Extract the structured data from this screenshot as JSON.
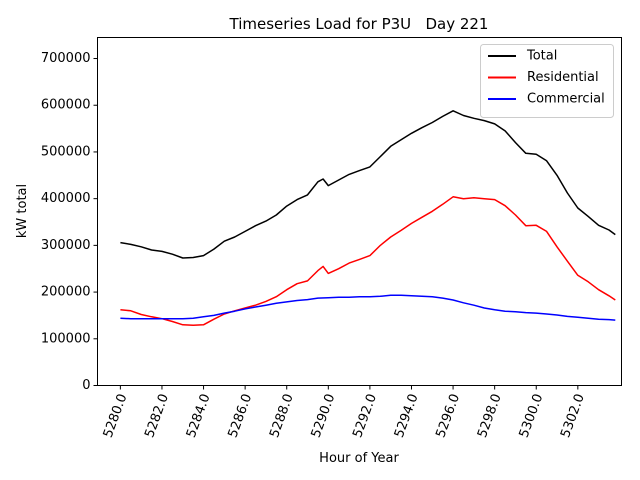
{
  "chart_data": {
    "type": "line",
    "title": "Timeseries Load for P3U   Day 221",
    "xlabel": "Hour of Year",
    "ylabel": "kW total",
    "xlim": [
      5278.9,
      5304.1
    ],
    "ylim": [
      0,
      745000
    ],
    "xticks": [
      5280,
      5282,
      5284,
      5286,
      5288,
      5290,
      5292,
      5294,
      5296,
      5298,
      5300,
      5302
    ],
    "xtick_labels": [
      "5280.0",
      "5282.0",
      "5284.0",
      "5286.0",
      "5288.0",
      "5290.0",
      "5292.0",
      "5294.0",
      "5296.0",
      "5298.0",
      "5300.0",
      "5302.0"
    ],
    "yticks": [
      0,
      100000,
      200000,
      300000,
      400000,
      500000,
      600000,
      700000
    ],
    "ytick_labels": [
      "0",
      "100000",
      "200000",
      "300000",
      "400000",
      "500000",
      "600000",
      "700000"
    ],
    "legend_position": "top-right",
    "series": [
      {
        "name": "Total",
        "color": "#000000",
        "points": [
          [
            5280.0,
            306000
          ],
          [
            5280.5,
            302000
          ],
          [
            5281.0,
            297000
          ],
          [
            5281.5,
            290000
          ],
          [
            5282.0,
            287000
          ],
          [
            5282.5,
            281000
          ],
          [
            5283.0,
            273000
          ],
          [
            5283.5,
            274000
          ],
          [
            5284.0,
            278000
          ],
          [
            5284.5,
            292000
          ],
          [
            5285.0,
            309000
          ],
          [
            5285.5,
            318000
          ],
          [
            5286.0,
            330000
          ],
          [
            5286.5,
            342000
          ],
          [
            5287.0,
            352000
          ],
          [
            5287.5,
            365000
          ],
          [
            5288.0,
            384000
          ],
          [
            5288.5,
            398000
          ],
          [
            5289.0,
            408000
          ],
          [
            5289.5,
            436000
          ],
          [
            5289.75,
            442000
          ],
          [
            5290.0,
            428000
          ],
          [
            5290.5,
            440000
          ],
          [
            5291.0,
            452000
          ],
          [
            5291.5,
            460000
          ],
          [
            5292.0,
            468000
          ],
          [
            5292.5,
            490000
          ],
          [
            5293.0,
            512000
          ],
          [
            5293.5,
            526000
          ],
          [
            5294.0,
            540000
          ],
          [
            5294.5,
            552000
          ],
          [
            5295.0,
            563000
          ],
          [
            5295.5,
            576000
          ],
          [
            5296.0,
            588000
          ],
          [
            5296.5,
            578000
          ],
          [
            5297.0,
            572000
          ],
          [
            5297.5,
            567000
          ],
          [
            5298.0,
            560000
          ],
          [
            5298.5,
            545000
          ],
          [
            5299.0,
            520000
          ],
          [
            5299.5,
            497000
          ],
          [
            5300.0,
            495000
          ],
          [
            5300.5,
            481000
          ],
          [
            5301.0,
            450000
          ],
          [
            5301.5,
            412000
          ],
          [
            5302.0,
            380000
          ],
          [
            5302.5,
            362000
          ],
          [
            5303.0,
            343000
          ],
          [
            5303.5,
            333000
          ],
          [
            5303.8,
            323000
          ]
        ]
      },
      {
        "name": "Residential",
        "color": "#ff0000",
        "points": [
          [
            5280.0,
            162000
          ],
          [
            5280.5,
            160000
          ],
          [
            5281.0,
            152000
          ],
          [
            5281.5,
            147000
          ],
          [
            5282.0,
            143000
          ],
          [
            5282.5,
            137000
          ],
          [
            5283.0,
            130000
          ],
          [
            5283.5,
            129000
          ],
          [
            5284.0,
            130000
          ],
          [
            5284.5,
            142000
          ],
          [
            5285.0,
            153000
          ],
          [
            5285.5,
            160000
          ],
          [
            5286.0,
            166000
          ],
          [
            5286.5,
            172000
          ],
          [
            5287.0,
            180000
          ],
          [
            5287.5,
            190000
          ],
          [
            5288.0,
            205000
          ],
          [
            5288.5,
            218000
          ],
          [
            5289.0,
            224000
          ],
          [
            5289.5,
            246000
          ],
          [
            5289.75,
            255000
          ],
          [
            5290.0,
            240000
          ],
          [
            5290.5,
            250000
          ],
          [
            5291.0,
            262000
          ],
          [
            5291.5,
            270000
          ],
          [
            5292.0,
            278000
          ],
          [
            5292.5,
            300000
          ],
          [
            5293.0,
            318000
          ],
          [
            5293.5,
            332000
          ],
          [
            5294.0,
            347000
          ],
          [
            5294.5,
            360000
          ],
          [
            5295.0,
            373000
          ],
          [
            5295.5,
            388000
          ],
          [
            5296.0,
            404000
          ],
          [
            5296.5,
            400000
          ],
          [
            5297.0,
            402000
          ],
          [
            5297.5,
            400000
          ],
          [
            5298.0,
            398000
          ],
          [
            5298.5,
            385000
          ],
          [
            5299.0,
            365000
          ],
          [
            5299.5,
            342000
          ],
          [
            5300.0,
            343000
          ],
          [
            5300.5,
            330000
          ],
          [
            5301.0,
            297000
          ],
          [
            5301.5,
            266000
          ],
          [
            5302.0,
            236000
          ],
          [
            5302.5,
            222000
          ],
          [
            5303.0,
            205000
          ],
          [
            5303.5,
            192000
          ],
          [
            5303.8,
            183000
          ]
        ]
      },
      {
        "name": "Commercial",
        "color": "#0000ff",
        "points": [
          [
            5280.0,
            144000
          ],
          [
            5280.5,
            143000
          ],
          [
            5281.0,
            143000
          ],
          [
            5281.5,
            143000
          ],
          [
            5282.0,
            143000
          ],
          [
            5282.5,
            143000
          ],
          [
            5283.0,
            143000
          ],
          [
            5283.5,
            144000
          ],
          [
            5284.0,
            147000
          ],
          [
            5284.5,
            150000
          ],
          [
            5285.0,
            155000
          ],
          [
            5285.5,
            159000
          ],
          [
            5286.0,
            164000
          ],
          [
            5286.5,
            168000
          ],
          [
            5287.0,
            172000
          ],
          [
            5287.5,
            176000
          ],
          [
            5288.0,
            179000
          ],
          [
            5288.5,
            182000
          ],
          [
            5289.0,
            184000
          ],
          [
            5289.5,
            187000
          ],
          [
            5290.0,
            188000
          ],
          [
            5290.5,
            189000
          ],
          [
            5291.0,
            189000
          ],
          [
            5291.5,
            190000
          ],
          [
            5292.0,
            190000
          ],
          [
            5292.5,
            191000
          ],
          [
            5293.0,
            193000
          ],
          [
            5293.5,
            193000
          ],
          [
            5294.0,
            192000
          ],
          [
            5294.5,
            191000
          ],
          [
            5295.0,
            190000
          ],
          [
            5295.5,
            187000
          ],
          [
            5296.0,
            183000
          ],
          [
            5296.5,
            177000
          ],
          [
            5297.0,
            172000
          ],
          [
            5297.5,
            166000
          ],
          [
            5298.0,
            162000
          ],
          [
            5298.5,
            159000
          ],
          [
            5299.0,
            158000
          ],
          [
            5299.5,
            156000
          ],
          [
            5300.0,
            155000
          ],
          [
            5300.5,
            153000
          ],
          [
            5301.0,
            151000
          ],
          [
            5301.5,
            148000
          ],
          [
            5302.0,
            146000
          ],
          [
            5302.5,
            144000
          ],
          [
            5303.0,
            142000
          ],
          [
            5303.5,
            141000
          ],
          [
            5303.8,
            140000
          ]
        ]
      }
    ]
  }
}
